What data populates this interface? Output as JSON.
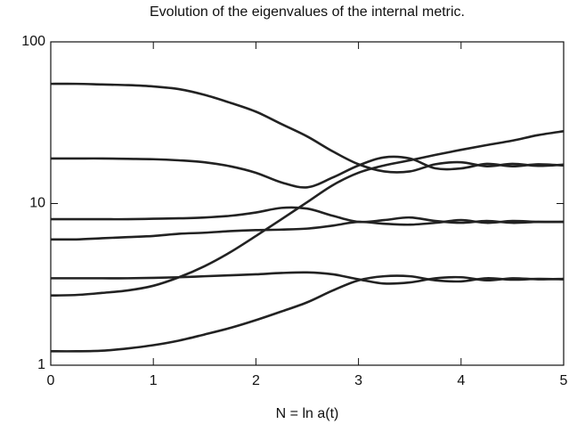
{
  "chart_data": {
    "type": "line",
    "title": "Evolution of the eigenvalues of the internal metric.",
    "x_label": "N = ln a(t)",
    "x": [
      0,
      0.25,
      0.5,
      0.75,
      1,
      1.25,
      1.5,
      1.75,
      2,
      2.25,
      2.5,
      2.75,
      3,
      3.25,
      3.5,
      3.75,
      4,
      4.25,
      4.5,
      4.75,
      5
    ],
    "series": [
      {
        "color": "#222222",
        "values": [
          55,
          55,
          54.5,
          54,
          53,
          51,
          47,
          42,
          37,
          31,
          26,
          21,
          17.5,
          15.8,
          15.8,
          17.5,
          18,
          17,
          17.6,
          17.1,
          17.4
        ]
      },
      {
        "color": "#222222",
        "values": [
          19,
          19,
          19,
          18.9,
          18.8,
          18.5,
          18,
          17,
          15.5,
          13.5,
          12.6,
          14.5,
          17.2,
          19.3,
          19,
          16.5,
          16.5,
          17.6,
          17,
          17.5,
          17.2
        ]
      },
      {
        "color": "#222222",
        "values": [
          2.7,
          2.72,
          2.8,
          2.9,
          3.1,
          3.5,
          4.1,
          5,
          6.3,
          8,
          10.2,
          13,
          15.5,
          17.2,
          18.5,
          20,
          21.5,
          23,
          24.5,
          26.5,
          28
        ]
      },
      {
        "color": "#222222",
        "values": [
          8,
          8,
          8,
          8,
          8.05,
          8.1,
          8.2,
          8.4,
          8.8,
          9.4,
          9.3,
          8.4,
          7.7,
          7.9,
          8.2,
          7.8,
          7.6,
          7.8,
          7.6,
          7.7,
          7.7
        ]
      },
      {
        "color": "#222222",
        "values": [
          6,
          6,
          6.1,
          6.2,
          6.3,
          6.5,
          6.6,
          6.75,
          6.85,
          6.9,
          7,
          7.3,
          7.7,
          7.5,
          7.4,
          7.6,
          7.9,
          7.6,
          7.8,
          7.7,
          7.7
        ]
      },
      {
        "color": "#222222",
        "values": [
          3.45,
          3.45,
          3.45,
          3.45,
          3.47,
          3.5,
          3.55,
          3.6,
          3.65,
          3.72,
          3.75,
          3.65,
          3.4,
          3.2,
          3.25,
          3.45,
          3.5,
          3.35,
          3.45,
          3.4,
          3.42
        ]
      },
      {
        "color": "#222222",
        "values": [
          1.22,
          1.22,
          1.23,
          1.27,
          1.33,
          1.42,
          1.55,
          1.7,
          1.9,
          2.15,
          2.45,
          2.9,
          3.35,
          3.55,
          3.55,
          3.35,
          3.3,
          3.45,
          3.38,
          3.42,
          3.4
        ]
      }
    ],
    "xlim": [
      0,
      5
    ],
    "xticks": [
      0,
      1,
      2,
      3,
      4,
      5
    ],
    "ylim": [
      1,
      100
    ],
    "yticks": [
      1,
      10,
      100
    ],
    "y_scale": "log"
  }
}
